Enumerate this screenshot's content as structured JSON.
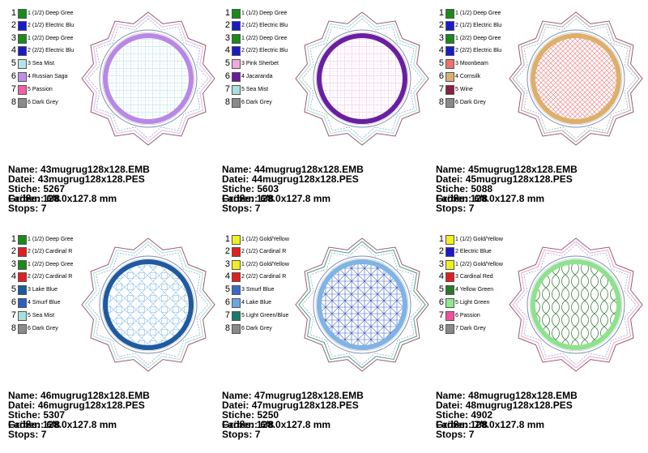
{
  "designs": [
    {
      "legend": [
        {
          "n": "1",
          "label": "1 (1/2) Deep Gree",
          "color": "#1a8a1a"
        },
        {
          "n": "2",
          "label": "2 (1/2) Electric Blu",
          "color": "#1a1ac8"
        },
        {
          "n": "3",
          "label": "1 (2/2) Deep Gree",
          "color": "#1a8a1a"
        },
        {
          "n": "4",
          "label": "2 (2/2) Electric Blu",
          "color": "#1a1ac8"
        },
        {
          "n": "5",
          "label": "3 Sea Mist",
          "color": "#b4e4e6"
        },
        {
          "n": "6",
          "label": "4 Russian Saga",
          "color": "#c090e8"
        },
        {
          "n": "7",
          "label": "5 Passion",
          "color": "#f060a8"
        },
        {
          "n": "8",
          "label": "6 Dark Grey",
          "color": "#8a8a8a"
        }
      ],
      "ring_color": "#b988e6",
      "fill_line": "#8fd7da",
      "border_color": "#d9b8ec",
      "pattern": "grid",
      "name": "43mugrug128x128.EMB",
      "datei": "43mugrug128x128.PES",
      "stiche": "5267",
      "farben": "6/8",
      "groesse": "128.0x127.8 mm",
      "stops": "7"
    },
    {
      "legend": [
        {
          "n": "1",
          "label": "1 (1/2) Deep Gree",
          "color": "#1a8a1a"
        },
        {
          "n": "2",
          "label": "2 (1/2) Electric Blu",
          "color": "#1a1ac8"
        },
        {
          "n": "3",
          "label": "1 (2/2) Deep Gree",
          "color": "#1a8a1a"
        },
        {
          "n": "4",
          "label": "2 (2/2) Electric Blu",
          "color": "#1a1ac8"
        },
        {
          "n": "5",
          "label": "3 Pink Sherbet",
          "color": "#f0a8e0"
        },
        {
          "n": "6",
          "label": "4 Jacaranda",
          "color": "#6a1a9a"
        },
        {
          "n": "7",
          "label": "5 Sea Mist",
          "color": "#a8e0e0"
        },
        {
          "n": "8",
          "label": "6 Dark Grey",
          "color": "#8a8a8a"
        }
      ],
      "ring_color": "#6a1fa2",
      "fill_line": "#e9a8e0",
      "border_color": "#a8dede",
      "pattern": "grid",
      "name": "44mugrug128x128.EMB",
      "datei": "44mugrug128x128.PES",
      "stiche": "5603",
      "farben": "6/8",
      "groesse": "128.0x127.8 mm",
      "stops": "7"
    },
    {
      "legend": [
        {
          "n": "1",
          "label": "1 (1/2) Deep Gree",
          "color": "#1a8a1a"
        },
        {
          "n": "2",
          "label": "2 (1/2) Electric Blu",
          "color": "#1a1ac8"
        },
        {
          "n": "3",
          "label": "1 (2/2) Deep Gree",
          "color": "#1a8a1a"
        },
        {
          "n": "4",
          "label": "2 (2/2) Electric Blu",
          "color": "#1a1ac8"
        },
        {
          "n": "5",
          "label": "3 Moonbeam",
          "color": "#f07070"
        },
        {
          "n": "6",
          "label": "4 Cornsilk",
          "color": "#d8b070"
        },
        {
          "n": "7",
          "label": "5 Wine",
          "color": "#8a2040"
        },
        {
          "n": "8",
          "label": "6 Dark Grey",
          "color": "#8a8a8a"
        }
      ],
      "ring_color": "#dcb06a",
      "fill_line": "#f08a8a",
      "border_color": "#a8a8a8",
      "pattern": "diamond",
      "name": "45mugrug128x128.EMB",
      "datei": "45mugrug128x128.PES",
      "stiche": "5088",
      "farben": "6/8",
      "groesse": "128.0x127.8 mm",
      "stops": "7"
    },
    {
      "legend": [
        {
          "n": "1",
          "label": "1 (1/2) Deep Gree",
          "color": "#1a8a1a"
        },
        {
          "n": "2",
          "label": "2 (1/2) Cardinal R",
          "color": "#e02020"
        },
        {
          "n": "3",
          "label": "1 (2/2) Deep Gree",
          "color": "#1a8a1a"
        },
        {
          "n": "4",
          "label": "2 (2/2) Cardinal R",
          "color": "#e02020"
        },
        {
          "n": "5",
          "label": "3 Lake Blue",
          "color": "#1a5aa0"
        },
        {
          "n": "6",
          "label": "4 Smurf Blue",
          "color": "#2a60c0"
        },
        {
          "n": "7",
          "label": "5 Sea Mist",
          "color": "#a8e0e0"
        },
        {
          "n": "8",
          "label": "6 Dark Grey",
          "color": "#8a8a8a"
        }
      ],
      "ring_color": "#1f5aa0",
      "fill_line": "#9cc8ee",
      "border_color": "#a8dede",
      "pattern": "weave",
      "name": "46mugrug128x128.EMB",
      "datei": "46mugrug128x128.PES",
      "stiche": "5307",
      "farben": "6/8",
      "groesse": "128.0x127.8 mm",
      "stops": "7"
    },
    {
      "legend": [
        {
          "n": "1",
          "label": "1 (1/2) Gold/Yellow",
          "color": "#f0f020"
        },
        {
          "n": "2",
          "label": "2 (1/2) Cardinal R",
          "color": "#e02020"
        },
        {
          "n": "3",
          "label": "1 (2/2) Gold/Yellow",
          "color": "#f0f020"
        },
        {
          "n": "4",
          "label": "2 (2/2) Cardinal R",
          "color": "#e02020"
        },
        {
          "n": "5",
          "label": "3 Smurf Blue",
          "color": "#3a6ac8"
        },
        {
          "n": "6",
          "label": "4 Lake Blue",
          "color": "#6aa8e0"
        },
        {
          "n": "7",
          "label": "5 Light Green/Blue",
          "color": "#1a7a6a"
        },
        {
          "n": "8",
          "label": "6 Dark Grey",
          "color": "#8a8a8a"
        }
      ],
      "ring_color": "#7fb4e4",
      "fill_line": "#3a5ec0",
      "border_color": "#4a9a8a",
      "pattern": "star",
      "name": "47mugrug128x128.EMB",
      "datei": "47mugrug128x128.PES",
      "stiche": "5250",
      "farben": "6/8",
      "groesse": "128.0x127.8 mm",
      "stops": "7"
    },
    {
      "legend": [
        {
          "n": "1",
          "label": "1 (1/2) Gold/Yellow",
          "color": "#f0f020"
        },
        {
          "n": "2",
          "label": "2 Electric Blue",
          "color": "#1a1ac8"
        },
        {
          "n": "3",
          "label": "1 (2/2) Gold/Yellow",
          "color": "#f0f020"
        },
        {
          "n": "4",
          "label": "3 Cardinal Red",
          "color": "#e02020"
        },
        {
          "n": "5",
          "label": "4 Yellow Green",
          "color": "#2a7a2a"
        },
        {
          "n": "6",
          "label": "5 Light Green",
          "color": "#90e890"
        },
        {
          "n": "7",
          "label": "6 Passion",
          "color": "#f050a0"
        },
        {
          "n": "8",
          "label": "7 Dark Grey",
          "color": "#8a8a8a"
        }
      ],
      "ring_color": "#8ee28e",
      "fill_line": "#3f7f3f",
      "border_color": "#f0a0d8",
      "pattern": "scallop",
      "name": "48mugrug128x128.EMB",
      "datei": "48mugrug128x128.PES",
      "stiche": "4902",
      "farben": "7/8",
      "groesse": "128.0x127.8 mm",
      "stops": "7"
    }
  ],
  "labels": {
    "name": "Name:",
    "datei": "Datei:",
    "stiche": "Stiche:",
    "farben": "Farben:",
    "groesse": "Größe:",
    "stops": "Stops:"
  }
}
